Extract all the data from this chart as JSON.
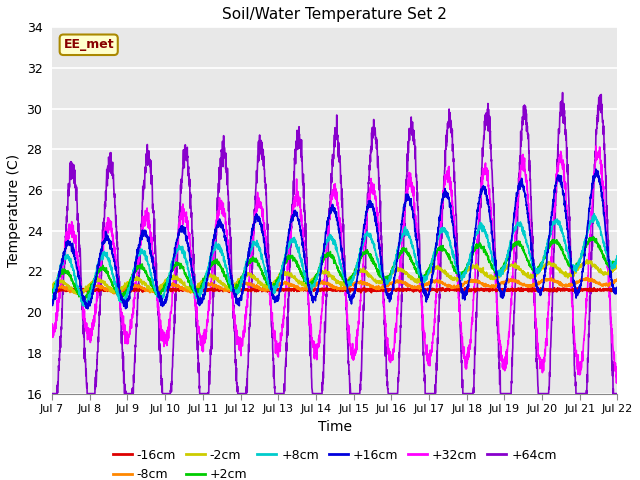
{
  "title": "Soil/Water Temperature Set 2",
  "xlabel": "Time",
  "ylabel": "Temperature (C)",
  "ylim": [
    16,
    34
  ],
  "xlim": [
    0,
    15
  ],
  "background_color": "#ffffff",
  "plot_bg_color": "#e8e8e8",
  "annotation_text": "EE_met",
  "annotation_bg": "#ffffcc",
  "annotation_border": "#aa8800",
  "annotation_text_color": "#880000",
  "series": [
    {
      "label": "-16cm",
      "color": "#dd0000",
      "linewidth": 1.2,
      "zorder": 5
    },
    {
      "label": "-8cm",
      "color": "#ff8800",
      "linewidth": 1.2,
      "zorder": 5
    },
    {
      "label": "-2cm",
      "color": "#cccc00",
      "linewidth": 1.2,
      "zorder": 5
    },
    {
      "label": "+2cm",
      "color": "#00cc00",
      "linewidth": 1.2,
      "zorder": 5
    },
    {
      "label": "+8cm",
      "color": "#00cccc",
      "linewidth": 1.2,
      "zorder": 5
    },
    {
      "label": "+16cm",
      "color": "#0000dd",
      "linewidth": 1.2,
      "zorder": 5
    },
    {
      "label": "+32cm",
      "color": "#ff00ff",
      "linewidth": 1.2,
      "zorder": 4
    },
    {
      "label": "+64cm",
      "color": "#8800cc",
      "linewidth": 1.2,
      "zorder": 3
    }
  ],
  "xtick_labels": [
    "Jul 7",
    "Jul 8",
    "Jul 9",
    "Jul 10",
    "Jul 11",
    "Jul 12",
    "Jul 13",
    "Jul 14",
    "Jul 15",
    "Jul 16",
    "Jul 17",
    "Jul 18",
    "Jul 19",
    "Jul 20",
    "Jul 21",
    "Jul 22"
  ],
  "xtick_positions": [
    0,
    1,
    2,
    3,
    4,
    5,
    6,
    7,
    8,
    9,
    10,
    11,
    12,
    13,
    14,
    15
  ],
  "ytick_labels": [
    "16",
    "18",
    "20",
    "22",
    "24",
    "26",
    "28",
    "30",
    "32",
    "34"
  ],
  "ytick_positions": [
    16,
    18,
    20,
    22,
    24,
    26,
    28,
    30,
    32,
    34
  ],
  "n_points": 3000,
  "duration_days": 15
}
